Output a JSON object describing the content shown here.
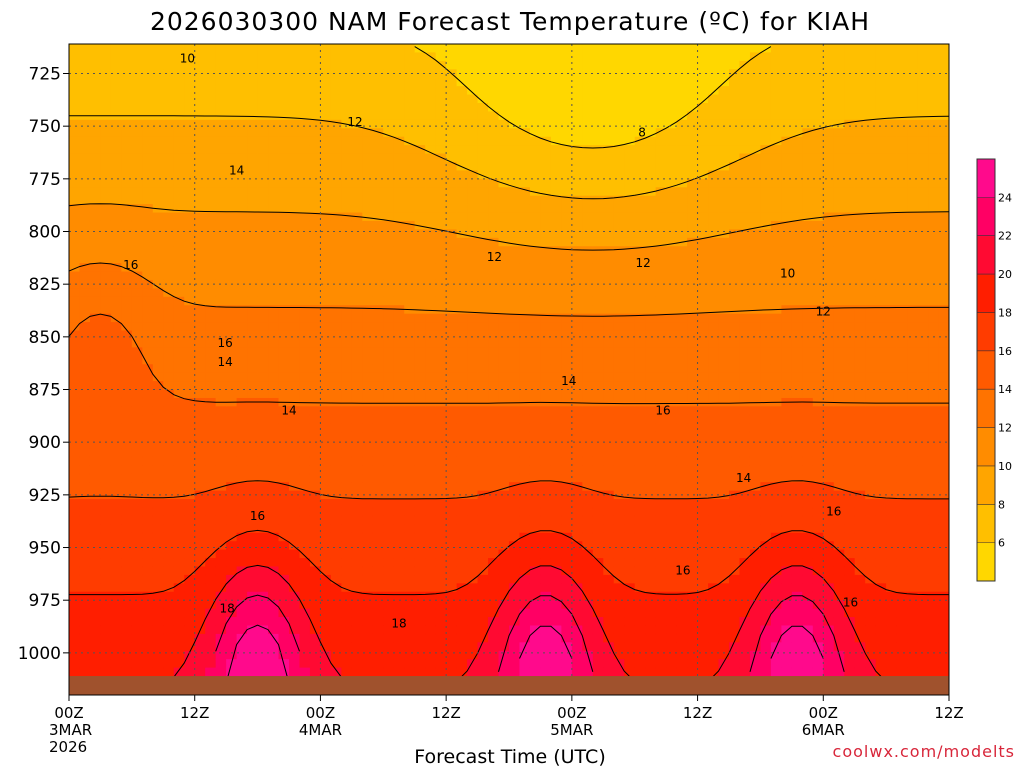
{
  "chart_data": {
    "type": "heatmap",
    "title": "2026030300 NAM Forecast Temperature (ºC) for KIAH",
    "xlabel": "Forecast Time (UTC)",
    "ylabel": "",
    "watermark": "coolwx.com/modelts",
    "x_ticks": [
      {
        "hour": 0,
        "line1": "00Z",
        "line2": "3MAR",
        "line3": "2026"
      },
      {
        "hour": 12,
        "line1": "12Z",
        "line2": "",
        "line3": ""
      },
      {
        "hour": 24,
        "line1": "00Z",
        "line2": "4MAR",
        "line3": ""
      },
      {
        "hour": 36,
        "line1": "12Z",
        "line2": "",
        "line3": ""
      },
      {
        "hour": 48,
        "line1": "00Z",
        "line2": "5MAR",
        "line3": ""
      },
      {
        "hour": 60,
        "line1": "12Z",
        "line2": "",
        "line3": ""
      },
      {
        "hour": 72,
        "line1": "00Z",
        "line2": "6MAR",
        "line3": ""
      },
      {
        "hour": 84,
        "line1": "12Z",
        "line2": "",
        "line3": ""
      }
    ],
    "x_range_hours": [
      0,
      84
    ],
    "y_ticks": [
      725,
      750,
      775,
      800,
      825,
      850,
      875,
      900,
      925,
      950,
      975,
      1000
    ],
    "y_range_hPa": [
      711,
      1020
    ],
    "surface_pressure_hPa": 1011,
    "colorbar": {
      "levels": [
        4,
        6,
        8,
        10,
        12,
        14,
        16,
        18,
        20,
        22,
        24,
        26
      ],
      "labels": [
        "6",
        "8",
        "10",
        "12",
        "14",
        "16",
        "18",
        "20",
        "22",
        "24"
      ],
      "colors": [
        "#ffd700",
        "#ffbf00",
        "#ffa500",
        "#ff8c00",
        "#ff7300",
        "#ff5a00",
        "#ff3c00",
        "#ff1e00",
        "#ff0a32",
        "#ff0064",
        "#ff0a8c"
      ]
    },
    "contour_labels": [
      {
        "text": "10",
        "hour": 11.3,
        "hPa": 718
      },
      {
        "text": "12",
        "hour": 27.3,
        "hPa": 748
      },
      {
        "text": "8",
        "hour": 54.7,
        "hPa": 753
      },
      {
        "text": "14",
        "hour": 16,
        "hPa": 771
      },
      {
        "text": "16",
        "hour": 5.9,
        "hPa": 816
      },
      {
        "text": "12",
        "hour": 40.6,
        "hPa": 812
      },
      {
        "text": "12",
        "hour": 54.8,
        "hPa": 815
      },
      {
        "text": "10",
        "hour": 68.6,
        "hPa": 820
      },
      {
        "text": "12",
        "hour": 72,
        "hPa": 838
      },
      {
        "text": "16",
        "hour": 14.9,
        "hPa": 853
      },
      {
        "text": "14",
        "hour": 14.9,
        "hPa": 862
      },
      {
        "text": "14",
        "hour": 21,
        "hPa": 885
      },
      {
        "text": "14",
        "hour": 47.7,
        "hPa": 871
      },
      {
        "text": "16",
        "hour": 56.7,
        "hPa": 885
      },
      {
        "text": "14",
        "hour": 64.4,
        "hPa": 917
      },
      {
        "text": "16",
        "hour": 18,
        "hPa": 935
      },
      {
        "text": "16",
        "hour": 73,
        "hPa": 933
      },
      {
        "text": "18",
        "hour": 15.1,
        "hPa": 979
      },
      {
        "text": "18",
        "hour": 31.5,
        "hPa": 986
      },
      {
        "text": "16",
        "hour": 58.6,
        "hPa": 961
      },
      {
        "text": "16",
        "hour": 74.6,
        "hPa": 976
      }
    ],
    "temperature_profile_note": "Temperature generally increases with pressure; coldest (6-10 C) aloft near 725-775 hPa around 4MAR 12Z-5MAR 12Z; warmest (22-26 C) near surface on afternoon maxima.",
    "grid": true
  }
}
